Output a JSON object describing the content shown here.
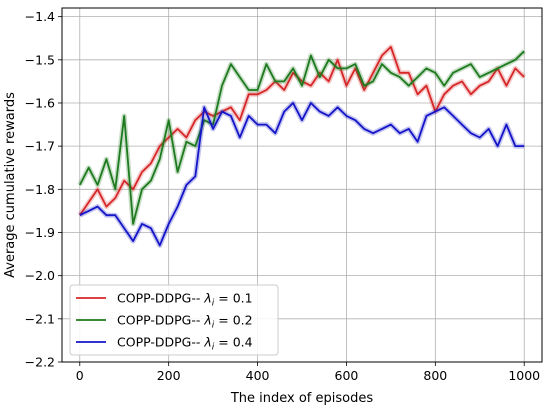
{
  "chart_data": {
    "type": "line",
    "title": "",
    "xlabel": "The index of episodes",
    "ylabel": "Average cumulative rewards",
    "xlim": [
      -40,
      1040
    ],
    "ylim": [
      -2.2,
      -1.38
    ],
    "xticks": [
      0,
      200,
      400,
      600,
      800,
      1000
    ],
    "xtick_labels": [
      "0",
      "200",
      "400",
      "600",
      "800",
      "1000"
    ],
    "yticks": [
      -2.2,
      -2.1,
      -2.0,
      -1.9,
      -1.8,
      -1.7,
      -1.6,
      -1.5,
      -1.4
    ],
    "ytick_labels": [
      "−2.2",
      "−2.1",
      "−2.0",
      "−1.9",
      "−1.8",
      "−1.7",
      "−1.6",
      "−1.5",
      "−1.4"
    ],
    "grid": true,
    "legend_position": "lower-left",
    "x": [
      0,
      20,
      40,
      60,
      80,
      100,
      120,
      140,
      160,
      180,
      200,
      220,
      240,
      260,
      280,
      300,
      320,
      340,
      360,
      380,
      400,
      420,
      440,
      460,
      480,
      500,
      520,
      540,
      560,
      580,
      600,
      620,
      640,
      660,
      680,
      700,
      720,
      740,
      760,
      780,
      800,
      820,
      840,
      860,
      880,
      900,
      920,
      940,
      960,
      980,
      1000
    ],
    "series": [
      {
        "name_prefix": "COPP-DDPG-- ",
        "name_symbol": "λ",
        "name_subscript": "i",
        "name_value": " = 0.1",
        "color": "#d62728",
        "values": [
          -1.86,
          -1.83,
          -1.8,
          -1.84,
          -1.82,
          -1.78,
          -1.8,
          -1.76,
          -1.74,
          -1.7,
          -1.68,
          -1.66,
          -1.68,
          -1.64,
          -1.62,
          -1.63,
          -1.62,
          -1.61,
          -1.64,
          -1.58,
          -1.58,
          -1.57,
          -1.55,
          -1.57,
          -1.53,
          -1.55,
          -1.56,
          -1.53,
          -1.55,
          -1.5,
          -1.56,
          -1.52,
          -1.57,
          -1.53,
          -1.49,
          -1.47,
          -1.53,
          -1.53,
          -1.58,
          -1.56,
          -1.62,
          -1.58,
          -1.56,
          -1.55,
          -1.58,
          -1.56,
          -1.55,
          -1.52,
          -1.56,
          -1.52,
          -1.54
        ]
      },
      {
        "name_prefix": "COPP-DDPG-- ",
        "name_symbol": "λ",
        "name_subscript": "i",
        "name_value": " = 0.2",
        "color": "#1e7a1e",
        "values": [
          -1.79,
          -1.75,
          -1.79,
          -1.73,
          -1.8,
          -1.63,
          -1.88,
          -1.8,
          -1.78,
          -1.73,
          -1.64,
          -1.76,
          -1.69,
          -1.7,
          -1.64,
          -1.65,
          -1.56,
          -1.51,
          -1.54,
          -1.57,
          -1.57,
          -1.51,
          -1.55,
          -1.55,
          -1.52,
          -1.56,
          -1.49,
          -1.54,
          -1.5,
          -1.52,
          -1.52,
          -1.51,
          -1.56,
          -1.55,
          -1.51,
          -1.53,
          -1.54,
          -1.56,
          -1.54,
          -1.52,
          -1.53,
          -1.56,
          -1.53,
          -1.52,
          -1.51,
          -1.54,
          -1.53,
          -1.52,
          -1.51,
          -1.5,
          -1.48
        ]
      },
      {
        "name_prefix": "COPP-DDPG-- ",
        "name_symbol": "λ",
        "name_subscript": "i",
        "name_value": " = 0.4",
        "color": "#1515c8",
        "values": [
          -1.86,
          -1.85,
          -1.84,
          -1.86,
          -1.86,
          -1.89,
          -1.92,
          -1.88,
          -1.89,
          -1.93,
          -1.88,
          -1.84,
          -1.79,
          -1.77,
          -1.61,
          -1.66,
          -1.62,
          -1.63,
          -1.68,
          -1.63,
          -1.65,
          -1.65,
          -1.67,
          -1.62,
          -1.6,
          -1.64,
          -1.6,
          -1.62,
          -1.63,
          -1.61,
          -1.63,
          -1.64,
          -1.66,
          -1.67,
          -1.66,
          -1.65,
          -1.67,
          -1.66,
          -1.69,
          -1.63,
          -1.62,
          -1.61,
          -1.63,
          -1.65,
          -1.67,
          -1.68,
          -1.66,
          -1.7,
          -1.65,
          -1.7,
          -1.7
        ]
      }
    ]
  }
}
